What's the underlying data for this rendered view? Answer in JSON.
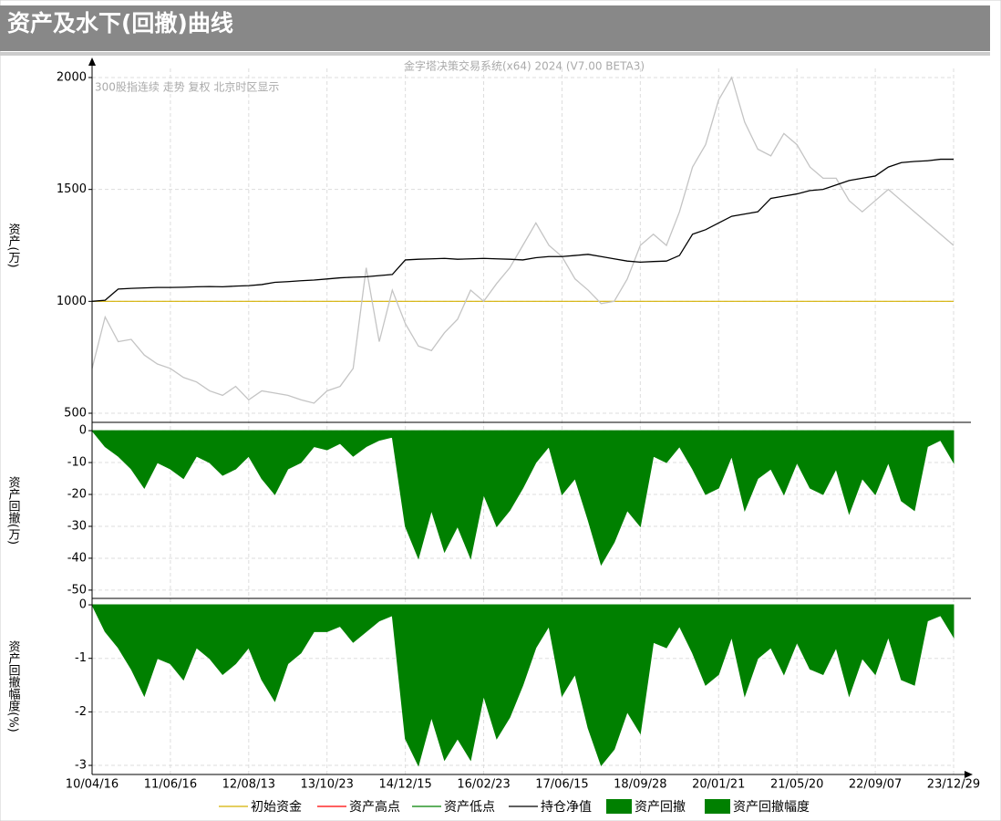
{
  "header": {
    "title": "资产及水下(回撤)曲线"
  },
  "chart_data": [
    {
      "type": "line",
      "subtitle": "金字塔决策交易系统(x64) 2024 (V7.00 BETA3)",
      "annotation": "300股指连续 走势 复权 北京时区显示",
      "ylabel": "资产(万)",
      "ylim": [
        500,
        2000
      ],
      "yticks": [
        500,
        1000,
        1500,
        2000
      ],
      "grid": true,
      "initial_capital": 1000,
      "initial_color": "#d4b000",
      "series": [
        {
          "name": "300股指连续",
          "color": "#c4c4c4",
          "values": [
            700,
            930,
            820,
            830,
            760,
            720,
            700,
            660,
            640,
            600,
            580,
            620,
            560,
            600,
            590,
            580,
            560,
            545,
            600,
            620,
            700,
            1150,
            820,
            1050,
            900,
            800,
            780,
            860,
            920,
            1050,
            1000,
            1080,
            1150,
            1250,
            1350,
            1250,
            1200,
            1100,
            1050,
            990,
            1000,
            1100,
            1250,
            1300,
            1250,
            1400,
            1600,
            1700,
            1900,
            2000,
            1800,
            1680,
            1650,
            1750,
            1700,
            1600,
            1550,
            1550,
            1450,
            1400,
            1450,
            1500,
            1450,
            1400,
            1350,
            1300,
            1250
          ]
        },
        {
          "name": "持仓净值",
          "color": "#000000",
          "values": [
            1000,
            1005,
            1055,
            1058,
            1060,
            1062,
            1062,
            1063,
            1065,
            1066,
            1065,
            1068,
            1070,
            1075,
            1085,
            1088,
            1092,
            1095,
            1100,
            1105,
            1108,
            1110,
            1115,
            1120,
            1185,
            1188,
            1190,
            1192,
            1188,
            1190,
            1192,
            1190,
            1188,
            1185,
            1195,
            1200,
            1200,
            1205,
            1210,
            1200,
            1190,
            1180,
            1175,
            1178,
            1180,
            1205,
            1300,
            1320,
            1350,
            1380,
            1390,
            1400,
            1460,
            1470,
            1480,
            1495,
            1500,
            1520,
            1540,
            1550,
            1560,
            1600,
            1620,
            1625,
            1628,
            1635,
            1635
          ]
        }
      ]
    },
    {
      "type": "area",
      "ylabel": "资产回撤(万)",
      "ylim": [
        -52.6,
        2.6
      ],
      "yticks": [
        0,
        -10,
        -20,
        -30,
        -40,
        -50
      ],
      "grid": true,
      "color": "#008000",
      "values": [
        0,
        -5,
        -8,
        -12,
        -18,
        -10,
        -12,
        -15,
        -8,
        -10,
        -14,
        -12,
        -8,
        -15,
        -20,
        -12,
        -10,
        -5,
        -6,
        -4,
        -8,
        -5,
        -3,
        -2,
        -30,
        -40,
        -25,
        -38,
        -30,
        -40,
        -20,
        -30,
        -25,
        -18,
        -10,
        -5,
        -20,
        -15,
        -28,
        -42,
        -35,
        -25,
        -30,
        -8,
        -10,
        -5,
        -12,
        -20,
        -18,
        -8,
        -25,
        -15,
        -12,
        -20,
        -10,
        -18,
        -20,
        -12,
        -26,
        -15,
        -20,
        -10,
        -22,
        -25,
        -5,
        -3,
        -10
      ]
    },
    {
      "type": "area",
      "ylabel": "资产回撤幅度(%)",
      "ylim": [
        -3.17,
        0.12
      ],
      "yticks": [
        0,
        -1,
        -2,
        -3
      ],
      "grid": true,
      "color": "#008000",
      "values": [
        0,
        -0.5,
        -0.8,
        -1.2,
        -1.7,
        -1.0,
        -1.1,
        -1.4,
        -0.8,
        -1.0,
        -1.3,
        -1.1,
        -0.8,
        -1.4,
        -1.8,
        -1.1,
        -0.9,
        -0.5,
        -0.5,
        -0.4,
        -0.7,
        -0.5,
        -0.3,
        -0.2,
        -2.5,
        -3.0,
        -2.1,
        -2.9,
        -2.5,
        -2.9,
        -1.7,
        -2.5,
        -2.1,
        -1.5,
        -0.8,
        -0.4,
        -1.7,
        -1.3,
        -2.3,
        -3.0,
        -2.7,
        -2.0,
        -2.4,
        -0.7,
        -0.8,
        -0.4,
        -0.9,
        -1.5,
        -1.3,
        -0.6,
        -1.7,
        -1.0,
        -0.8,
        -1.3,
        -0.7,
        -1.2,
        -1.3,
        -0.8,
        -1.7,
        -1.0,
        -1.3,
        -0.6,
        -1.4,
        -1.5,
        -0.3,
        -0.2,
        -0.6
      ],
      "categories": [
        "10/04/16",
        null,
        null,
        null,
        null,
        null,
        "11/06/16",
        null,
        null,
        null,
        null,
        null,
        "12/08/13",
        null,
        null,
        null,
        null,
        null,
        "13/10/23",
        null,
        null,
        null,
        null,
        null,
        "14/12/15",
        null,
        null,
        null,
        null,
        null,
        "16/02/23",
        null,
        null,
        null,
        null,
        null,
        "17/06/15",
        null,
        null,
        null,
        null,
        null,
        "18/09/28",
        null,
        null,
        null,
        null,
        null,
        "20/01/21",
        null,
        null,
        null,
        null,
        null,
        "21/05/20",
        null,
        null,
        null,
        null,
        null,
        "22/09/07",
        null,
        null,
        null,
        null,
        null,
        "23/12/29"
      ]
    }
  ],
  "legend": [
    {
      "name": "初始资金",
      "color": "#d4b000",
      "shape": "line"
    },
    {
      "name": "资产高点",
      "color": "#ff0000",
      "shape": "line"
    },
    {
      "name": "资产低点",
      "color": "#008000",
      "shape": "line"
    },
    {
      "name": "持仓净值",
      "color": "#000000",
      "shape": "line"
    },
    {
      "name": "资产回撤",
      "color": "#008000",
      "shape": "box"
    },
    {
      "name": "资产回撤幅度",
      "color": "#008000",
      "shape": "box"
    }
  ]
}
